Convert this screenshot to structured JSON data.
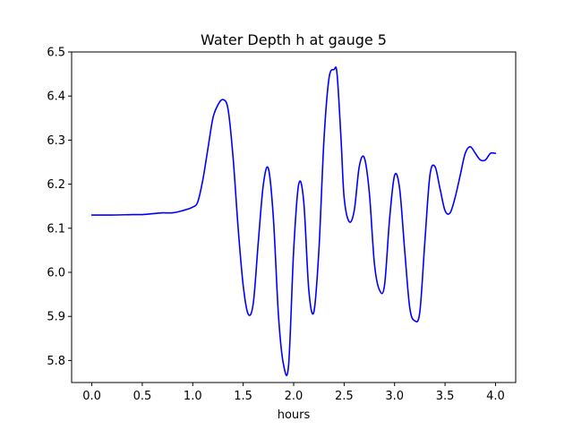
{
  "chart_data": {
    "type": "line",
    "title": "Water Depth h at gauge 5",
    "xlabel": "hours",
    "ylabel": "",
    "xlim": [
      -0.2,
      4.2
    ],
    "ylim": [
      5.75,
      6.5
    ],
    "xticks": [
      {
        "value": 0.0,
        "label": "0.0"
      },
      {
        "value": 0.5,
        "label": "0.5"
      },
      {
        "value": 1.0,
        "label": "1.0"
      },
      {
        "value": 1.5,
        "label": "1.5"
      },
      {
        "value": 2.0,
        "label": "2.0"
      },
      {
        "value": 2.5,
        "label": "2.5"
      },
      {
        "value": 3.0,
        "label": "3.0"
      },
      {
        "value": 3.5,
        "label": "3.5"
      },
      {
        "value": 4.0,
        "label": "4.0"
      }
    ],
    "yticks": [
      {
        "value": 5.8,
        "label": "5.8"
      },
      {
        "value": 5.9,
        "label": "5.9"
      },
      {
        "value": 6.0,
        "label": "6.0"
      },
      {
        "value": 6.1,
        "label": "6.1"
      },
      {
        "value": 6.2,
        "label": "6.2"
      },
      {
        "value": 6.3,
        "label": "6.3"
      },
      {
        "value": 6.4,
        "label": "6.4"
      },
      {
        "value": 6.5,
        "label": "6.5"
      }
    ],
    "grid": false,
    "series": [
      {
        "color": "#0000ff",
        "x": [
          0.0,
          0.2,
          0.4,
          0.5,
          0.6,
          0.7,
          0.8,
          0.9,
          1.0,
          1.05,
          1.1,
          1.15,
          1.2,
          1.25,
          1.3,
          1.35,
          1.4,
          1.45,
          1.5,
          1.55,
          1.6,
          1.65,
          1.7,
          1.75,
          1.8,
          1.85,
          1.9,
          1.95,
          2.0,
          2.05,
          2.1,
          2.15,
          2.2,
          2.25,
          2.3,
          2.35,
          2.4,
          2.43,
          2.47,
          2.5,
          2.55,
          2.6,
          2.65,
          2.7,
          2.75,
          2.8,
          2.85,
          2.9,
          2.95,
          3.0,
          3.05,
          3.1,
          3.15,
          3.2,
          3.25,
          3.3,
          3.35,
          3.4,
          3.45,
          3.5,
          3.55,
          3.6,
          3.65,
          3.7,
          3.75,
          3.8,
          3.85,
          3.9,
          3.95,
          4.0
        ],
        "y": [
          6.13,
          6.13,
          6.131,
          6.131,
          6.133,
          6.135,
          6.135,
          6.14,
          6.148,
          6.16,
          6.21,
          6.28,
          6.35,
          6.38,
          6.392,
          6.37,
          6.26,
          6.1,
          5.97,
          5.905,
          5.93,
          6.07,
          6.2,
          6.235,
          6.12,
          5.9,
          5.79,
          5.79,
          6.05,
          6.2,
          6.16,
          5.96,
          5.91,
          6.05,
          6.3,
          6.44,
          6.46,
          6.45,
          6.3,
          6.17,
          6.115,
          6.14,
          6.24,
          6.26,
          6.18,
          6.02,
          5.96,
          5.97,
          6.12,
          6.22,
          6.19,
          6.05,
          5.92,
          5.89,
          5.91,
          6.07,
          6.22,
          6.24,
          6.19,
          6.14,
          6.135,
          6.17,
          6.22,
          6.27,
          6.285,
          6.27,
          6.255,
          6.255,
          6.27,
          6.27
        ]
      }
    ]
  }
}
